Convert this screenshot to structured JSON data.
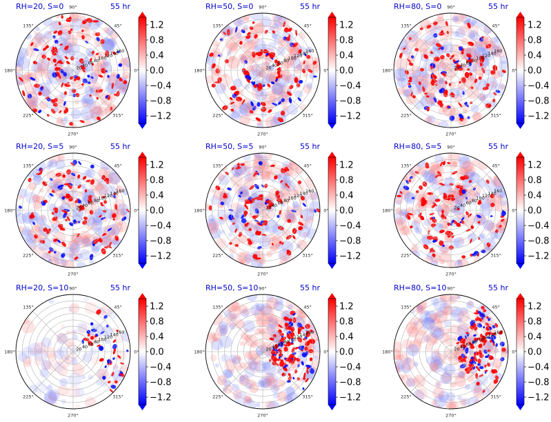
{
  "colors": {
    "positive": "#e00000",
    "negative": "#0000ff",
    "neutral": "#ffffff",
    "grid": "#b0b0b0"
  },
  "chart_data": {
    "type": "heatmap",
    "projection": "polar",
    "grid": true,
    "angular_ticks": [
      "90°",
      "45°",
      "0°",
      "315°",
      "270°",
      "225°",
      "180°",
      "135°"
    ],
    "radial_ticks": [
      "20",
      "40",
      "60",
      "80",
      "100",
      "120",
      "140",
      "160"
    ],
    "radial_tick_values": [
      20,
      40,
      60,
      80,
      100,
      120,
      140,
      160
    ],
    "rmax": 180,
    "colorbar": {
      "ticks": [
        "1.2",
        "0.8",
        "0.4",
        "0.0",
        "−0.4",
        "−0.8",
        "−1.2"
      ],
      "tick_values": [
        1.2,
        0.8,
        0.4,
        0.0,
        -0.4,
        -0.8,
        -1.2
      ],
      "vmin": -1.4,
      "vmax": 1.4,
      "colormap": "bwr",
      "extend": "both"
    },
    "panels": [
      {
        "title_left": "RH=20, S=0",
        "title_right": "55 hr",
        "rh": 20,
        "shear": 0,
        "regime": "scattered"
      },
      {
        "title_left": "RH=50, S=0",
        "title_right": "55 hr",
        "rh": 50,
        "shear": 0,
        "regime": "ring"
      },
      {
        "title_left": "RH=80, S=0",
        "title_right": "55 hr",
        "rh": 80,
        "shear": 0,
        "regime": "spiral-core"
      },
      {
        "title_left": "RH=20, S=5",
        "title_right": "55 hr",
        "rh": 20,
        "shear": 5,
        "regime": "spiral"
      },
      {
        "title_left": "RH=50, S=5",
        "title_right": "55 hr",
        "rh": 50,
        "shear": 5,
        "regime": "spiral-core"
      },
      {
        "title_left": "RH=80, S=5",
        "title_right": "55 hr",
        "rh": 80,
        "shear": 5,
        "regime": "spiral"
      },
      {
        "title_left": "RH=20, S=10",
        "title_right": "55 hr",
        "rh": 20,
        "shear": 10,
        "regime": "sheared-weak"
      },
      {
        "title_left": "RH=50, S=10",
        "title_right": "55 hr",
        "rh": 50,
        "shear": 10,
        "regime": "sheared"
      },
      {
        "title_left": "RH=80, S=10",
        "title_right": "55 hr",
        "rh": 80,
        "shear": 10,
        "regime": "sheared"
      }
    ]
  }
}
